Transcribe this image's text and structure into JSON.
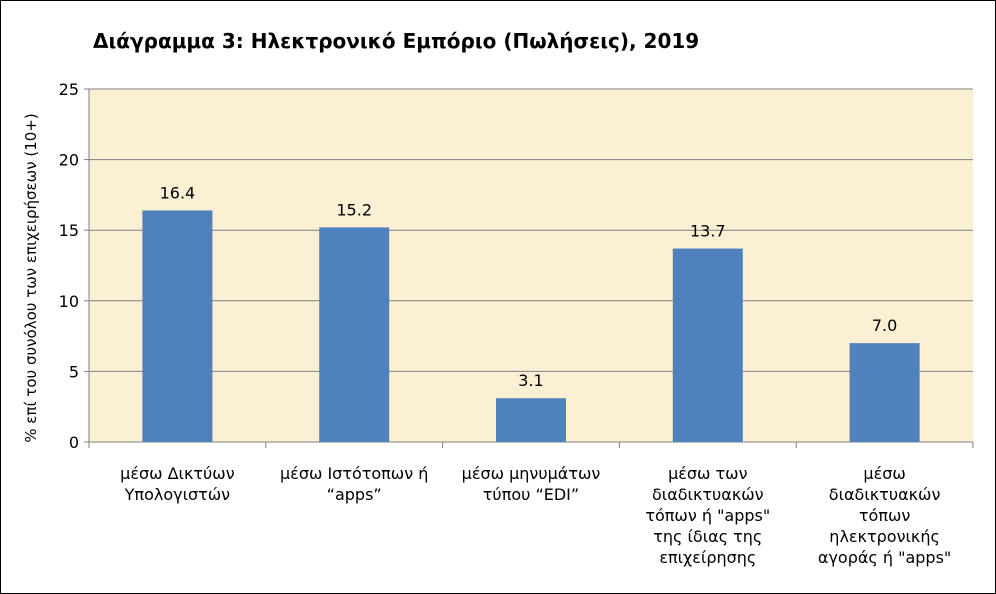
{
  "chart_data": {
    "type": "bar",
    "title": "Διάγραμμα 3: Ηλεκτρονικό Εμπόριο (Πωλήσεις), 2019",
    "ylabel": "% επί του συνόλου των επιχειρήσεων   (10+)",
    "xlabel": "",
    "categories": [
      "μέσω Δικτύων\nΥπολογιστών",
      "μέσω Ιστότοπων ή\n“apps”",
      "μέσω μηνυμάτων\nτύπου “EDI”",
      "μέσω των\nδιαδικτυακών\nτόπων ή \"apps\"\nτης ίδιας της\nεπιχείρησης",
      "μέσω\nδιαδικτυακών\nτόπων\nηλεκτρονικής\nαγοράς ή \"apps\""
    ],
    "values": [
      16.4,
      15.2,
      3.1,
      13.7,
      7.0
    ],
    "data_labels": [
      "16.4",
      "15.2",
      "3.1",
      "13.7",
      "7.0"
    ],
    "ylim": [
      0,
      25
    ],
    "yticks": [
      "0",
      "5",
      "10",
      "15",
      "20",
      "25"
    ],
    "grid": true,
    "legend": "none",
    "colors": {
      "bar": "#4F81BD",
      "plot_background": "#FBEFD4",
      "gridline": "#808080"
    }
  }
}
